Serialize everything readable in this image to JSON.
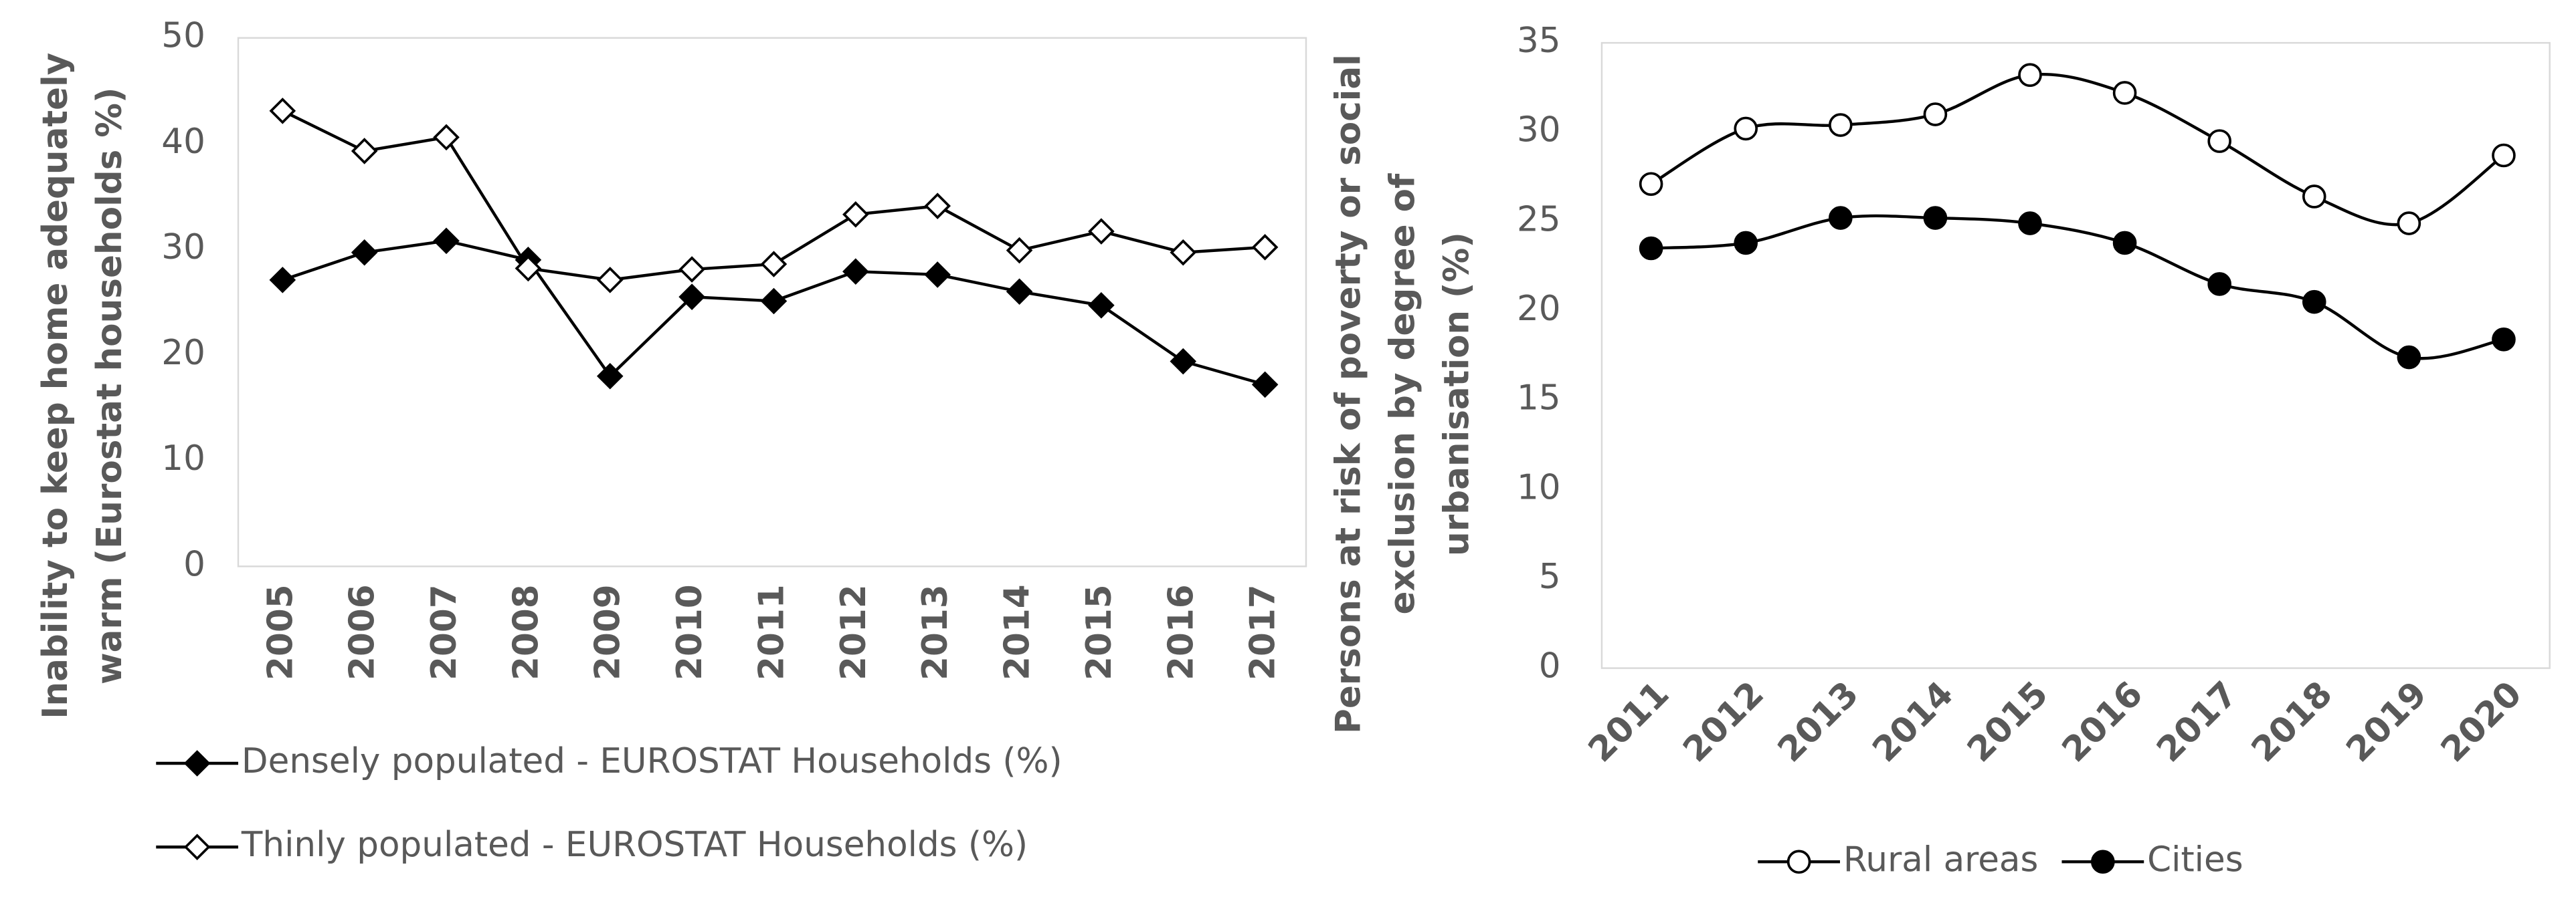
{
  "chart_data": [
    {
      "type": "line",
      "smooth": false,
      "y_label": [
        "Inability to keep home adequately",
        "warm (Eurostat households %)"
      ],
      "categories": [
        "2005",
        "2006",
        "2007",
        "2008",
        "2009",
        "2010",
        "2011",
        "2012",
        "2013",
        "2014",
        "2015",
        "2016",
        "2017"
      ],
      "series": [
        {
          "name": "Densely populated - EUROSTAT Households (%)",
          "color": "#000000",
          "marker": "diamond-filled",
          "values": [
            27.1,
            29.7,
            30.8,
            29.0,
            18.0,
            25.5,
            25.1,
            27.9,
            27.6,
            26.0,
            24.7,
            19.4,
            17.2
          ]
        },
        {
          "name": "Thinly populated - EUROSTAT Households (%)",
          "color": "#000000",
          "marker": "diamond-open",
          "values": [
            43.1,
            39.3,
            40.6,
            28.2,
            27.1,
            28.1,
            28.6,
            33.3,
            34.1,
            29.9,
            31.7,
            29.7,
            30.2
          ]
        }
      ],
      "ylim": [
        0,
        50
      ],
      "yticks": [
        0,
        10,
        20,
        30,
        40,
        50
      ],
      "grid": false,
      "legend": "bottom",
      "x_label_rotation": -90
    },
    {
      "type": "line",
      "smooth": true,
      "y_label": [
        "Persons at risk of poverty or social",
        "exclusion by degree of",
        "urbanisation (%)"
      ],
      "categories": [
        "2011",
        "2012",
        "2013",
        "2014",
        "2015",
        "2016",
        "2017",
        "2018",
        "2019",
        "2020"
      ],
      "series": [
        {
          "name": "Rural areas",
          "color": "#000000",
          "marker": "circle-open",
          "values": [
            27.1,
            30.2,
            30.4,
            31.0,
            33.2,
            32.2,
            29.5,
            26.4,
            24.9,
            28.7
          ]
        },
        {
          "name": "Cities",
          "color": "#000000",
          "marker": "circle-filled",
          "values": [
            23.5,
            23.8,
            25.2,
            25.2,
            24.9,
            23.8,
            21.5,
            20.5,
            17.4,
            18.4
          ]
        }
      ],
      "ylim": [
        0,
        35
      ],
      "yticks": [
        0,
        5,
        10,
        15,
        20,
        25,
        30,
        35
      ],
      "grid": false,
      "legend": "bottom",
      "x_label_rotation": -45
    }
  ]
}
